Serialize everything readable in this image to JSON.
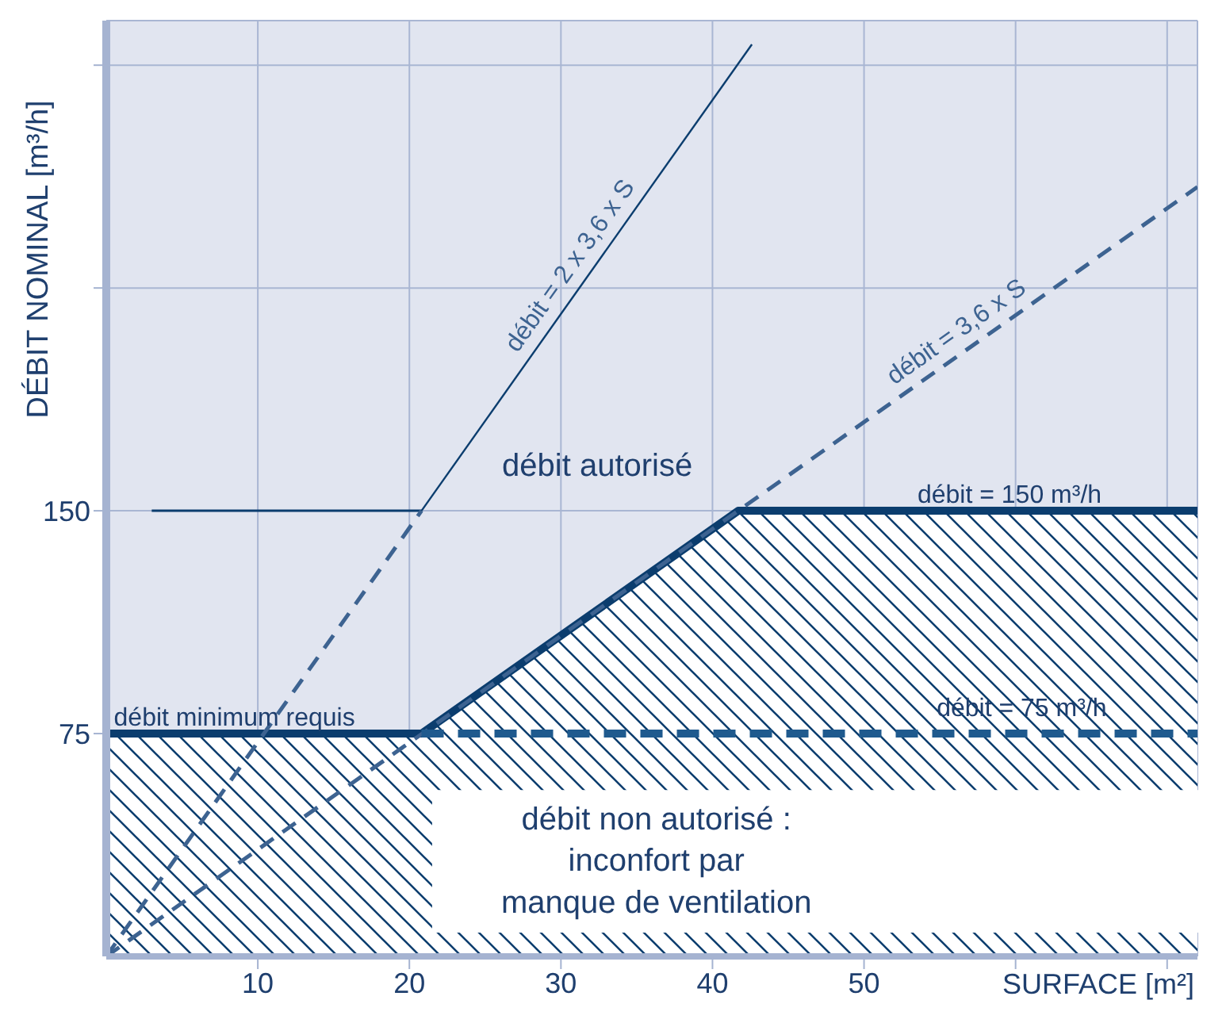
{
  "chart_data": {
    "type": "line",
    "xlabel": "SURFACE [m²]",
    "ylabel": "DÉBIT NOMINAL  [m³/h]",
    "xlim": [
      0,
      72
    ],
    "xticks": [
      10,
      20,
      30,
      40,
      50,
      {
        "value": 60,
        "label": null
      },
      {
        "value": 70,
        "label": null
      }
    ],
    "ylim": [
      0,
      315
    ],
    "yticks": [
      75,
      150,
      {
        "value": 225,
        "label": null
      },
      {
        "value": 300,
        "label": null
      }
    ],
    "grid": true,
    "legend": false,
    "marker": "none",
    "series": [
      {
        "type": "area",
        "color": "#0b3d6e",
        "line_style": "solid",
        "x": [
          0,
          20.8,
          41.7,
          72
        ],
        "values": [
          75,
          75,
          150,
          150
        ]
      },
      {
        "color": "#0b3d6e",
        "line_style": "solid",
        "x": [
          3,
          20.8
        ],
        "values": [
          150,
          150
        ]
      },
      {
        "color": "#3d6391",
        "line_style": "dashed",
        "x": [
          0,
          20.8
        ],
        "values": [
          0,
          150
        ]
      },
      {
        "name": "débit = 2 x 3,6 x S",
        "color": "#0b3d6e",
        "line_style": "solid",
        "x": [
          20.8,
          42.6
        ],
        "values": [
          150,
          307
        ]
      },
      {
        "name": "débit = 3,6 x S",
        "color": "#3d6391",
        "line_style": "dashed",
        "x": [
          0,
          72
        ],
        "values": [
          0,
          259
        ]
      },
      {
        "color": "#1f5a8e",
        "line_style": "dashed",
        "x": [
          20.8,
          72
        ],
        "values": [
          75,
          75
        ]
      }
    ],
    "annotations": [
      {
        "text": "débit minimum requis",
        "x": 0.5,
        "y": 75
      },
      {
        "text": "débit = 150 m³/h",
        "x": 59.6,
        "y": 150
      },
      {
        "text": "débit = 75 m³/h",
        "x": 60.4,
        "y": 75
      },
      "débit autorisé",
      "débit non autorisé :",
      "inconfort par",
      "manque de ventilation"
    ]
  }
}
